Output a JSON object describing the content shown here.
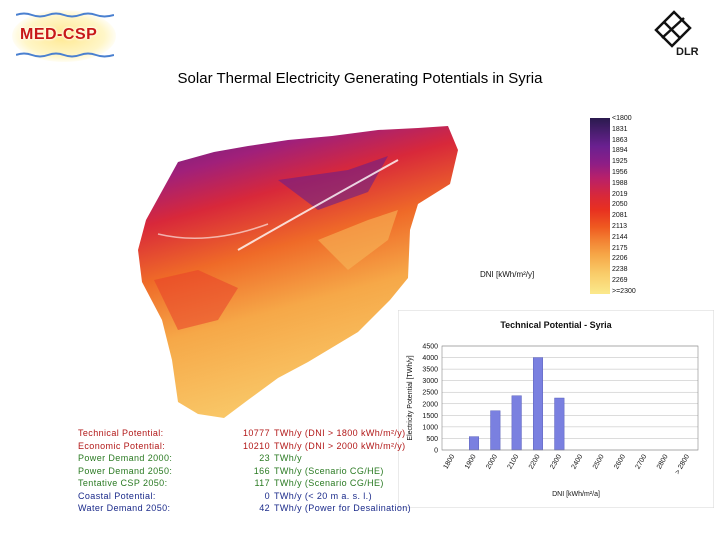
{
  "logo_left": {
    "text": "MED-CSP"
  },
  "logo_right": {
    "text": "DLR"
  },
  "title": "Solar Thermal Electricity Generating Potentials in Syria",
  "legend": {
    "labels": [
      "<1800",
      "1831",
      "1863",
      "1894",
      "1925",
      "1956",
      "1988",
      "2019",
      "2050",
      "2081",
      "2113",
      "2144",
      "2175",
      "2206",
      "2238",
      "2269",
      ">=2300"
    ],
    "unit": "DNI [kWh/m²/y]"
  },
  "stats": [
    {
      "label": "Technical Potential:",
      "value": "10777",
      "note": "TWh/y (DNI > 1800 kWh/m²/y)",
      "color": "red"
    },
    {
      "label": "Economic Potential:",
      "value": "10210",
      "note": "TWh/y (DNI > 2000 kWh/m²/y)",
      "color": "red"
    },
    {
      "label": "Power Demand 2000:",
      "value": "23",
      "note": "TWh/y",
      "color": "green"
    },
    {
      "label": "Power Demand 2050:",
      "value": "166",
      "note": "TWh/y (Scenario CG/HE)",
      "color": "green"
    },
    {
      "label": "Tentative CSP 2050:",
      "value": "117",
      "note": "TWh/y (Scenario CG/HE)",
      "color": "green"
    },
    {
      "label": "Coastal Potential:",
      "value": "0",
      "note": "TWh/y (< 20 m a. s. l.)",
      "color": "blue"
    },
    {
      "label": "Water Demand 2050:",
      "value": "42",
      "note": "TWh/y (Power for Desalination)",
      "color": "blue"
    }
  ],
  "chart_data": {
    "type": "bar",
    "title": "Technical Potential - Syria",
    "xlabel": "DNI [kWh/m²/a]",
    "ylabel": "Electricity Potential [TWh/y]",
    "categories": [
      "1800",
      "1900",
      "2000",
      "2100",
      "2200",
      "2300",
      "2400",
      "2500",
      "2600",
      "2700",
      "2800",
      "> 2800"
    ],
    "values": [
      0,
      580,
      1700,
      2350,
      4000,
      2250,
      0,
      0,
      0,
      0,
      0,
      0
    ],
    "yticks": [
      "0",
      "500",
      "1000",
      "1500",
      "2000",
      "2500",
      "3000",
      "3500",
      "4000",
      "4500"
    ],
    "ylim": [
      0,
      4500
    ],
    "grid": true,
    "bar_color": "#7a80e0"
  }
}
